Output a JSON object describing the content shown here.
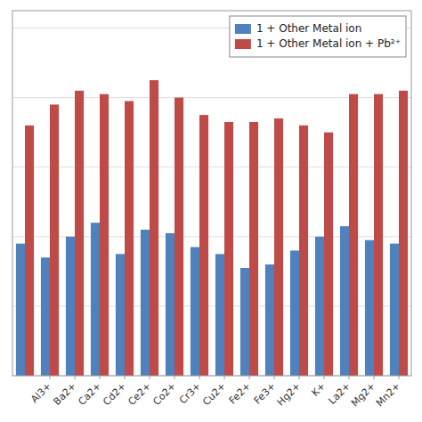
{
  "chart_data": {
    "type": "bar",
    "categories": [
      null,
      "Al3+",
      "Ba2+",
      "Ca2+",
      "Cd2+",
      "Ce2+",
      "Co2+",
      "Cr3+",
      "Cu2+",
      "Fe2+",
      "Fe3+",
      "Hg2+",
      "K+",
      "La2+",
      "Mg2+",
      "Mn2+"
    ],
    "series": [
      {
        "name": "1 + Other Metal ion",
        "color": "#4F81BD",
        "values": [
          0.38,
          0.34,
          0.4,
          0.44,
          0.35,
          0.42,
          0.41,
          0.37,
          0.35,
          0.31,
          0.32,
          0.36,
          0.4,
          0.43,
          0.39,
          0.38
        ]
      },
      {
        "name": "1 + Other Metal ion + Pb²⁺",
        "color": "#BE4B48",
        "values": [
          0.72,
          0.78,
          0.82,
          0.81,
          0.79,
          0.85,
          0.8,
          0.75,
          0.73,
          0.73,
          0.74,
          0.72,
          0.7,
          0.81,
          0.81,
          0.82
        ]
      }
    ],
    "ylim": [
      0,
      1.05
    ],
    "yticks": [
      0.0,
      0.2,
      0.4,
      0.6,
      0.8,
      1.0
    ],
    "grid": true,
    "legend": "upper right",
    "tick_labels": "x"
  }
}
